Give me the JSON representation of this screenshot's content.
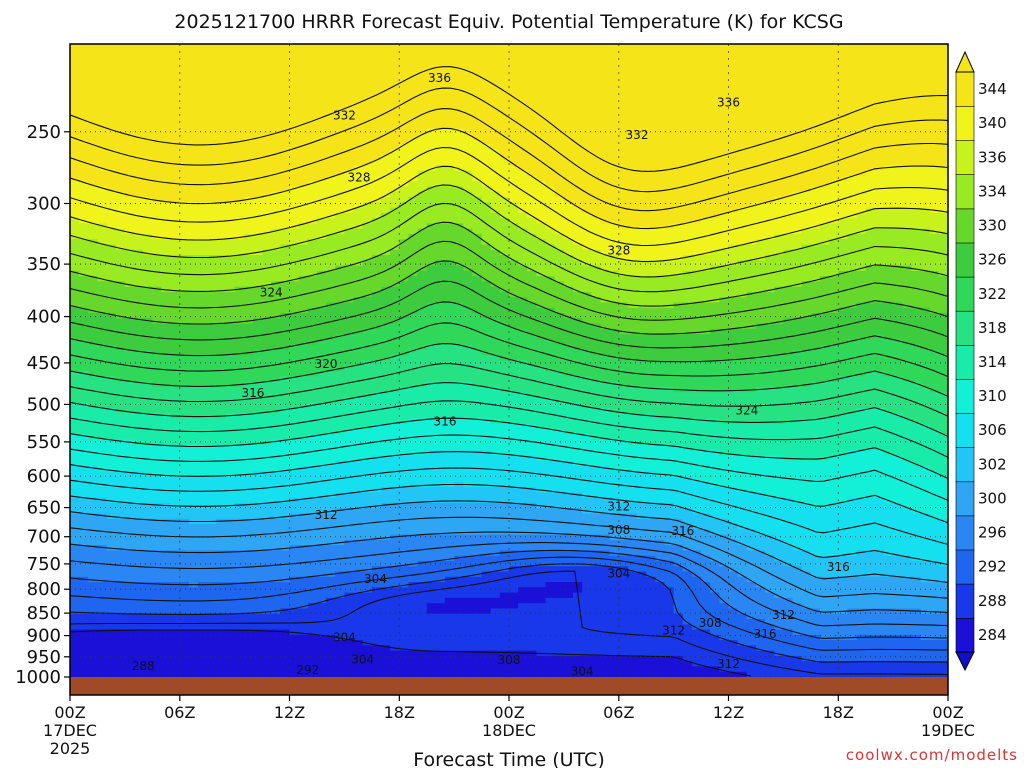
{
  "chart_data": {
    "type": "heatmap",
    "title": "2025121700 HRRR Forecast Equiv. Potential Temperature (K) for KCSG",
    "xlabel": "Forecast Time (UTC)",
    "y_scale": "log-pressure",
    "ylim": [
      1000,
      200
    ],
    "y_ticks": [
      250,
      300,
      350,
      400,
      450,
      500,
      550,
      600,
      650,
      700,
      750,
      800,
      850,
      900,
      950,
      1000
    ],
    "x_ticks": [
      {
        "hour": 0,
        "label": "00Z",
        "sub": "17DEC",
        "sub2": "2025"
      },
      {
        "hour": 6,
        "label": "06Z",
        "sub": "",
        "sub2": ""
      },
      {
        "hour": 12,
        "label": "12Z",
        "sub": "",
        "sub2": ""
      },
      {
        "hour": 18,
        "label": "18Z",
        "sub": "",
        "sub2": ""
      },
      {
        "hour": 24,
        "label": "00Z",
        "sub": "18DEC",
        "sub2": ""
      },
      {
        "hour": 30,
        "label": "06Z",
        "sub": "",
        "sub2": ""
      },
      {
        "hour": 36,
        "label": "12Z",
        "sub": "",
        "sub2": ""
      },
      {
        "hour": 42,
        "label": "18Z",
        "sub": "",
        "sub2": ""
      },
      {
        "hour": 48,
        "label": "00Z",
        "sub": "19DEC",
        "sub2": ""
      }
    ],
    "colorbar": {
      "levels": [
        284,
        288,
        292,
        296,
        300,
        302,
        306,
        310,
        314,
        318,
        322,
        326,
        330,
        334,
        336,
        340,
        344
      ],
      "colors": [
        "#1a10d8",
        "#1838ea",
        "#1e66f0",
        "#2a86f2",
        "#2ea6f4",
        "#22c6f6",
        "#14e0f0",
        "#12f0d8",
        "#18eca8",
        "#26e282",
        "#30d85a",
        "#3ccc3e",
        "#66d82c",
        "#98ea22",
        "#c8f21c",
        "#f0f41a",
        "#f4e418"
      ]
    },
    "grid": true,
    "contour_labels": [
      {
        "hour": 20.2,
        "p": 218,
        "v": "336"
      },
      {
        "hour": 36.0,
        "p": 232,
        "v": "336"
      },
      {
        "hour": 15.0,
        "p": 240,
        "v": "332"
      },
      {
        "hour": 31.0,
        "p": 252,
        "v": "332"
      },
      {
        "hour": 15.8,
        "p": 281,
        "v": "328"
      },
      {
        "hour": 30.0,
        "p": 338,
        "v": "328"
      },
      {
        "hour": 11.0,
        "p": 376,
        "v": "324"
      },
      {
        "hour": 37.0,
        "p": 508,
        "v": "324"
      },
      {
        "hour": 14.0,
        "p": 451,
        "v": "320"
      },
      {
        "hour": 10.0,
        "p": 486,
        "v": "316"
      },
      {
        "hour": 20.5,
        "p": 522,
        "v": "316"
      },
      {
        "hour": 14.0,
        "p": 662,
        "v": "312"
      },
      {
        "hour": 30.0,
        "p": 648,
        "v": "312"
      },
      {
        "hour": 33.5,
        "p": 690,
        "v": "316"
      },
      {
        "hour": 30.0,
        "p": 688,
        "v": "308"
      },
      {
        "hour": 16.7,
        "p": 779,
        "v": "304"
      },
      {
        "hour": 30.0,
        "p": 769,
        "v": "304"
      },
      {
        "hour": 42.0,
        "p": 756,
        "v": "316"
      },
      {
        "hour": 39.0,
        "p": 854,
        "v": "312"
      },
      {
        "hour": 35.0,
        "p": 872,
        "v": "308"
      },
      {
        "hour": 33.0,
        "p": 888,
        "v": "312"
      },
      {
        "hour": 38.0,
        "p": 897,
        "v": "316"
      },
      {
        "hour": 15.0,
        "p": 904,
        "v": "304"
      },
      {
        "hour": 16.0,
        "p": 956,
        "v": "304"
      },
      {
        "hour": 24.0,
        "p": 958,
        "v": "308"
      },
      {
        "hour": 36.0,
        "p": 968,
        "v": "312"
      },
      {
        "hour": 4.0,
        "p": 972,
        "v": "288"
      },
      {
        "hour": 13.0,
        "p": 982,
        "v": "292"
      },
      {
        "hour": 28.0,
        "p": 986,
        "v": "304"
      }
    ]
  },
  "credit": "coolwx.com/modelts"
}
